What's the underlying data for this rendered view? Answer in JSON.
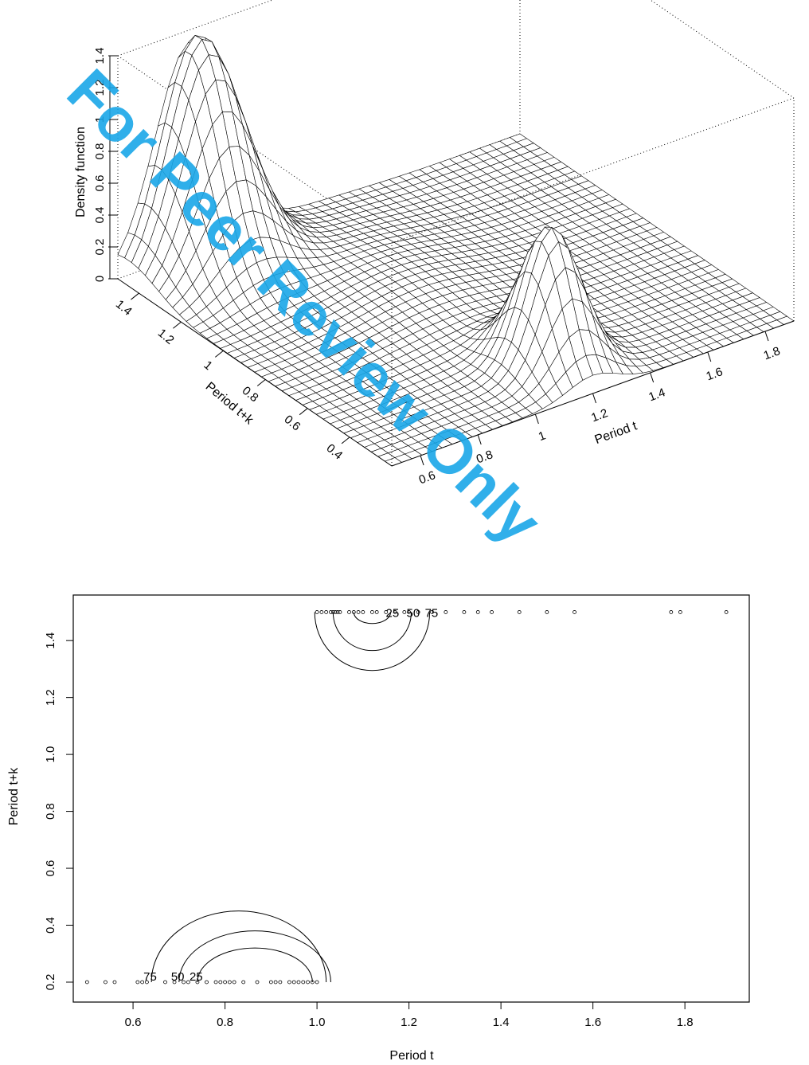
{
  "watermark": {
    "text": "For Peer Review Only",
    "color": "#1aa7e8"
  },
  "chart_data": [
    {
      "type": "surface",
      "title": "",
      "xlabel": "Period t",
      "ylabel": "Period t+k",
      "zlabel": "Density function",
      "x_ticks": [
        "0.6",
        "0.8",
        "1",
        "1.2",
        "1.4",
        "1.6",
        "1.8"
      ],
      "y_ticks": [
        "0.4",
        "0.6",
        "0.8",
        "1",
        "1.2",
        "1.4"
      ],
      "z_ticks": [
        "0",
        "0.2",
        "0.4",
        "0.6",
        "0.8",
        "1",
        "1.2",
        "1.4"
      ],
      "xlim": [
        0.5,
        1.9
      ],
      "ylim": [
        0.2,
        1.5
      ],
      "zlim": [
        0,
        1.4
      ],
      "peaks": [
        {
          "x": 0.75,
          "y": 1.45,
          "z": 1.4
        },
        {
          "x": 1.2,
          "y": 0.4,
          "z": 0.85
        }
      ]
    },
    {
      "type": "contour",
      "title": "",
      "xlabel": "Period t",
      "ylabel": "Period t+k",
      "x_ticks": [
        "0.6",
        "0.8",
        "1.0",
        "1.2",
        "1.4",
        "1.6",
        "1.8"
      ],
      "y_ticks": [
        "0.2",
        "0.4",
        "0.6",
        "0.8",
        "1.0",
        "1.2",
        "1.4"
      ],
      "xlim": [
        0.47,
        1.94
      ],
      "ylim": [
        0.13,
        1.56
      ],
      "contour_labels": [
        "25",
        "50",
        "75"
      ],
      "contours_top": [
        {
          "level": "25",
          "cx": 1.12,
          "cy": 1.5,
          "rx": 0.04,
          "ry": 0.04
        },
        {
          "level": "50",
          "cx": 1.12,
          "cy": 1.5,
          "rx": 0.085,
          "ry": 0.135
        },
        {
          "level": "75",
          "cx": 1.12,
          "cy": 1.5,
          "rx": 0.125,
          "ry": 0.205
        }
      ],
      "contours_bottom": [
        {
          "level": "25",
          "cx": 0.865,
          "cy": 0.2,
          "rx": 0.125,
          "ry": 0.12
        },
        {
          "level": "50",
          "cx": 0.865,
          "cy": 0.2,
          "rx": 0.165,
          "ry": 0.18
        },
        {
          "level": "75",
          "cx": 0.83,
          "cy": 0.2,
          "rx": 0.19,
          "ry": 0.25
        }
      ],
      "points_top": {
        "y": 1.5,
        "x": [
          1.0,
          1.01,
          1.02,
          1.03,
          1.035,
          1.04,
          1.045,
          1.05,
          1.07,
          1.08,
          1.09,
          1.1,
          1.12,
          1.13,
          1.15,
          1.17,
          1.19,
          1.2,
          1.22,
          1.25,
          1.28,
          1.32,
          1.35,
          1.38,
          1.44,
          1.5,
          1.56,
          1.77,
          1.79,
          1.89
        ]
      },
      "points_bottom": {
        "y": 0.2,
        "x": [
          0.5,
          0.54,
          0.56,
          0.61,
          0.62,
          0.63,
          0.67,
          0.69,
          0.71,
          0.72,
          0.74,
          0.76,
          0.78,
          0.79,
          0.8,
          0.81,
          0.82,
          0.84,
          0.87,
          0.9,
          0.91,
          0.92,
          0.94,
          0.95,
          0.96,
          0.97,
          0.98,
          0.99,
          1.0
        ]
      }
    }
  ]
}
